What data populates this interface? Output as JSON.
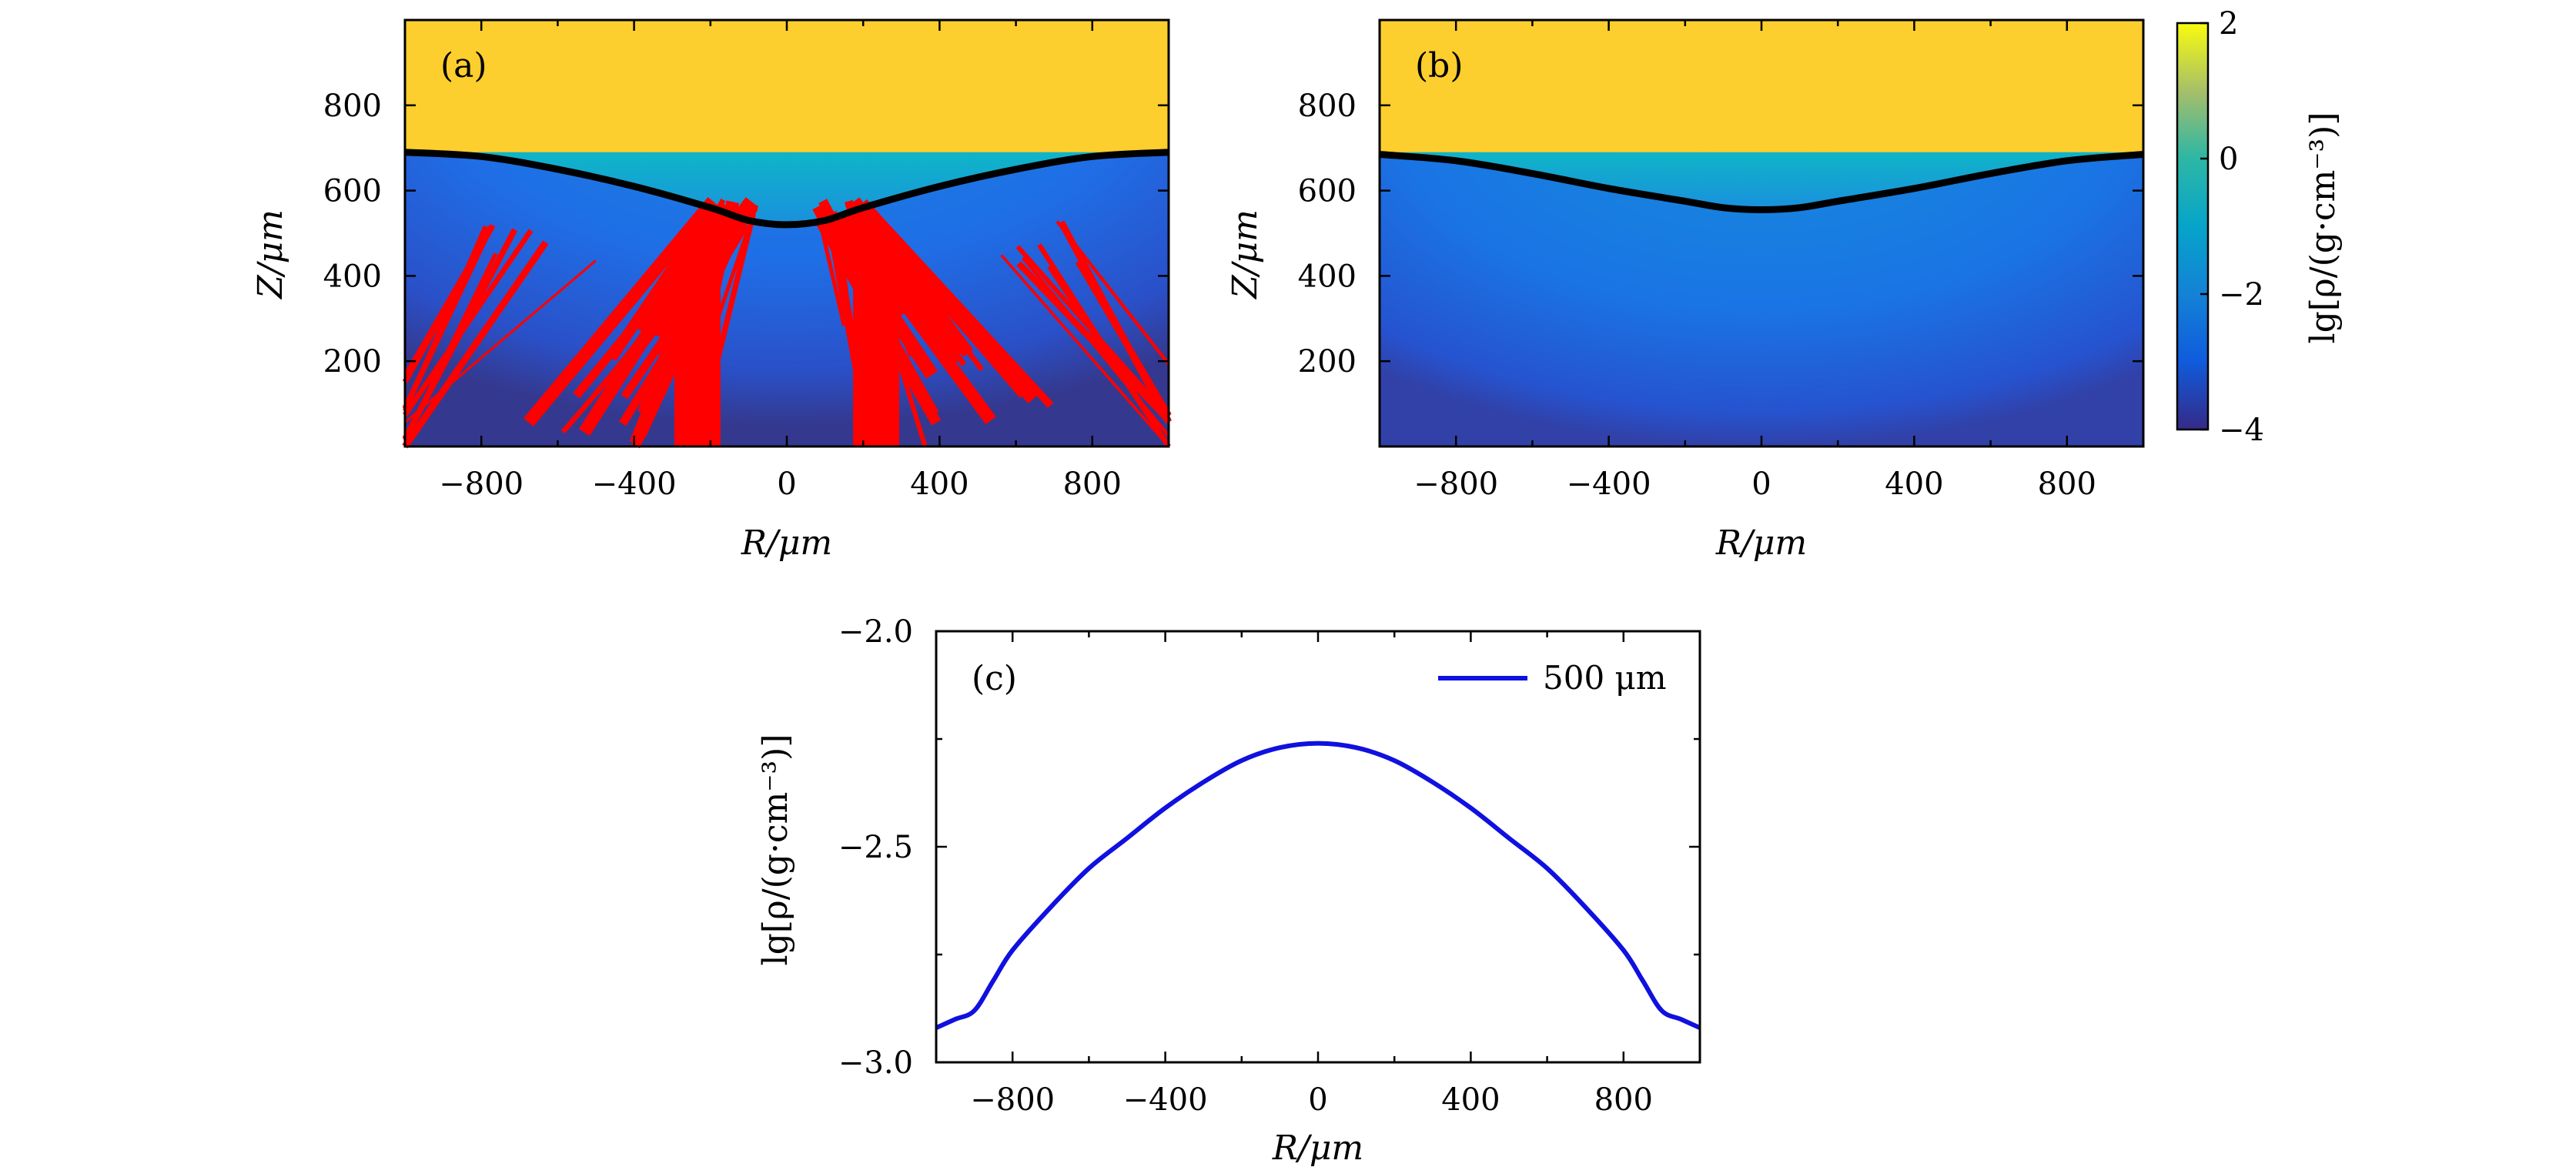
{
  "figure": {
    "panel_a": {
      "label": "(a)",
      "xlabel": "R/μm",
      "ylabel": "Z/μm",
      "xtick_labels": [
        "−800",
        "−400",
        "0",
        "400",
        "800"
      ],
      "ytick_labels": [
        "800",
        "600",
        "400",
        "200"
      ]
    },
    "panel_b": {
      "label": "(b)",
      "xlabel": "R/μm",
      "ylabel": "Z/μm",
      "xtick_labels": [
        "−800",
        "−400",
        "0",
        "400",
        "800"
      ],
      "ytick_labels": [
        "800",
        "600",
        "400",
        "200"
      ]
    },
    "colorbar": {
      "label": "lg[ρ/(g·cm⁻³)]",
      "tick_labels": [
        "2",
        "0",
        "−2",
        "−4"
      ]
    },
    "panel_c": {
      "label": "(c)",
      "xlabel": "R/μm",
      "ylabel": "lg[ρ/(g·cm⁻³)]",
      "legend": "500 μm",
      "xtick_labels": [
        "−800",
        "−400",
        "0",
        "400",
        "800"
      ],
      "ytick_labels": [
        "−2.0",
        "−2.5",
        "−3.0"
      ]
    }
  },
  "chart_data": [
    {
      "type": "heatmap",
      "panel": "(a)",
      "xlabel": "R/μm",
      "ylabel": "Z/μm",
      "xlim": [
        -1000,
        1000
      ],
      "ylim": [
        0,
        1000
      ],
      "xticks": [
        -800,
        -400,
        0,
        400,
        800
      ],
      "yticks": [
        200,
        400,
        600,
        800
      ],
      "colorscale": "parula",
      "value_range": [
        -4,
        2
      ],
      "overlay_colors": {
        "contour": "#000000",
        "marked_cells": "#ff0000"
      },
      "contour": {
        "x": [
          -1000,
          -800,
          -600,
          -400,
          -200,
          -100,
          0,
          100,
          200,
          400,
          600,
          800,
          1000
        ],
        "y": [
          690,
          680,
          650,
          610,
          560,
          530,
          520,
          530,
          560,
          610,
          650,
          680,
          690
        ]
      }
    },
    {
      "type": "heatmap",
      "panel": "(b)",
      "xlabel": "R/μm",
      "ylabel": "Z/μm",
      "xlim": [
        -1000,
        1000
      ],
      "ylim": [
        0,
        1000
      ],
      "xticks": [
        -800,
        -400,
        0,
        400,
        800
      ],
      "yticks": [
        200,
        400,
        600,
        800
      ],
      "colorscale": "parula",
      "value_range": [
        -4,
        2
      ],
      "overlay_colors": {
        "contour": "#000000"
      },
      "contour": {
        "x": [
          -1000,
          -800,
          -600,
          -400,
          -200,
          -100,
          0,
          100,
          200,
          400,
          600,
          800,
          1000
        ],
        "y": [
          685,
          670,
          640,
          605,
          575,
          560,
          555,
          560,
          575,
          605,
          640,
          670,
          685
        ]
      }
    },
    {
      "type": "line",
      "panel": "(c)",
      "xlabel": "R/μm",
      "ylabel": "lg[ρ/(g·cm⁻³)]",
      "xlim": [
        -1000,
        1000
      ],
      "ylim": [
        -3.0,
        -2.0
      ],
      "xticks": [
        -800,
        -400,
        0,
        400,
        800
      ],
      "yticks": [
        -2.0,
        -2.5,
        -3.0
      ],
      "legend_position": "top-right",
      "series": [
        {
          "name": "500 μm",
          "color": "#1010e0",
          "x": [
            -1000,
            -950,
            -900,
            -850,
            -800,
            -700,
            -600,
            -500,
            -400,
            -300,
            -200,
            -100,
            0,
            100,
            200,
            300,
            400,
            500,
            600,
            700,
            800,
            850,
            900,
            950,
            1000
          ],
          "y": [
            -2.92,
            -2.9,
            -2.88,
            -2.81,
            -2.74,
            -2.64,
            -2.55,
            -2.48,
            -2.41,
            -2.35,
            -2.3,
            -2.27,
            -2.26,
            -2.27,
            -2.3,
            -2.35,
            -2.41,
            -2.48,
            -2.55,
            -2.64,
            -2.74,
            -2.81,
            -2.88,
            -2.9,
            -2.92
          ]
        }
      ]
    }
  ]
}
